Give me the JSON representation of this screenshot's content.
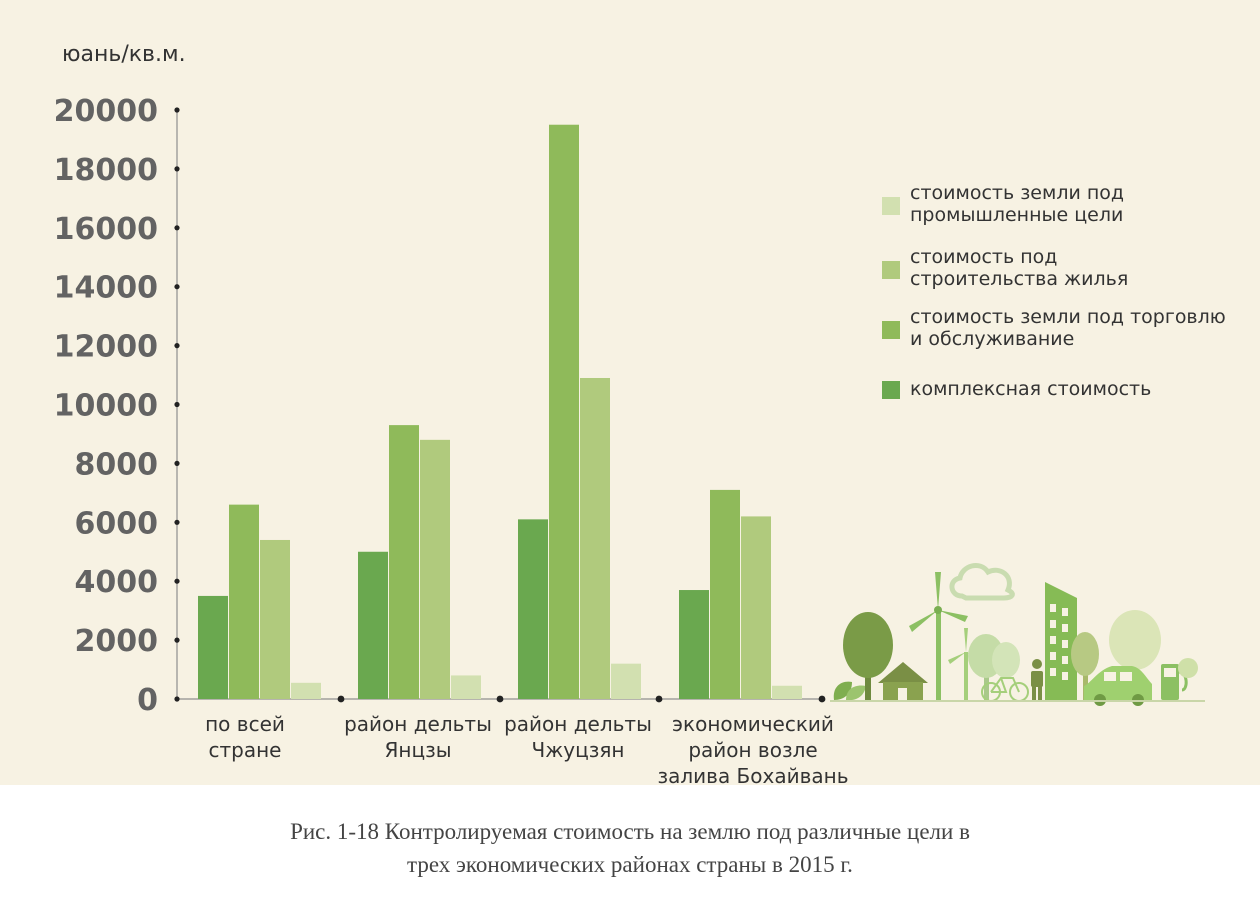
{
  "chart_data": {
    "type": "bar",
    "ylabel": "юань/кв.м.",
    "ylim": [
      0,
      20000
    ],
    "yticks": [
      0,
      2000,
      4000,
      6000,
      8000,
      10000,
      12000,
      14000,
      16000,
      18000,
      20000
    ],
    "categories": [
      "по всей стране",
      "район дельты Янцзы",
      "район дельты Чжуцзян",
      "экономический район возле залива Бохайвань"
    ],
    "category_lines": [
      [
        "по всей",
        "стране"
      ],
      [
        "район дельты",
        "Янцзы"
      ],
      [
        "район дельты",
        "Чжуцзян"
      ],
      [
        "экономический",
        "район возле",
        "залива Бохайвань"
      ]
    ],
    "series": [
      {
        "name": "комплексная стоимость",
        "color": "#6aa84f",
        "values": [
          3500,
          5000,
          6100,
          3700
        ]
      },
      {
        "name": "стоимость земли под торговлю и обслуживание",
        "color": "#8fba5a",
        "values": [
          6600,
          9300,
          19500,
          7100
        ]
      },
      {
        "name": "стоимость под строительства жилья",
        "color": "#b0ca7d",
        "values": [
          5400,
          8800,
          10900,
          6200
        ]
      },
      {
        "name": "стоимость земли под промышленные цели",
        "color": "#d2e0b0",
        "values": [
          550,
          800,
          1200,
          450
        ]
      }
    ],
    "legend": {
      "position": "right",
      "items": [
        {
          "label": "стоимость земли под промышленные цели",
          "lines": [
            "стоимость земли под",
            "промышленные цели"
          ],
          "color": "#d2e0b0"
        },
        {
          "label": "стоимость под строительства жилья",
          "lines": [
            "стоимость под",
            "строительства жилья"
          ],
          "color": "#b0ca7d"
        },
        {
          "label": "стоимость земли под торговлю и обслуживание",
          "lines": [
            "стоимость земли под торговлю",
            "и обслуживание"
          ],
          "color": "#8fba5a"
        },
        {
          "label": "комплексная стоимость",
          "lines": [
            "комплексная стоимость"
          ],
          "color": "#6aa84f"
        }
      ]
    },
    "grid": false
  },
  "caption": {
    "line1": "Рис. 1-18 Контролируемая стоимость на землю под различные цели в",
    "line2": "трех экономических районах страны в 2015 г."
  },
  "decoration": {
    "icons": [
      "tree-icon",
      "house-icon",
      "wind-turbine-icon",
      "cloud-icon",
      "bicycle-icon",
      "person-icon",
      "building-icon",
      "car-icon",
      "charging-station-icon",
      "leaf-icon"
    ]
  }
}
